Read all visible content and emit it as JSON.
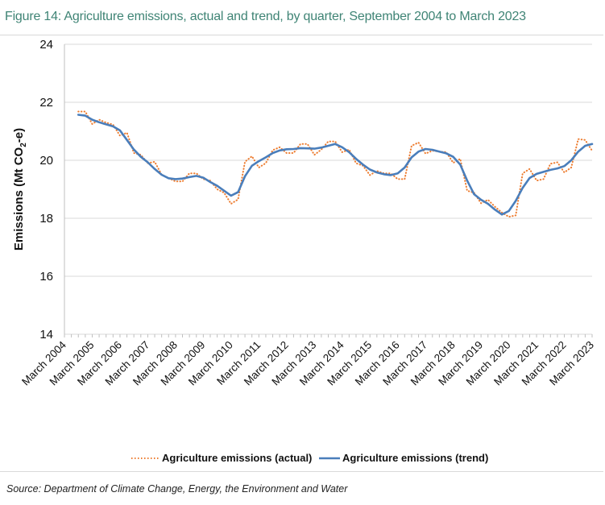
{
  "title": "Figure 14: Agriculture emissions, actual and trend, by quarter, September 2004 to March 2023",
  "source": "Source: Department of Climate Change, Energy, the Environment and Water",
  "chart_data": {
    "type": "line",
    "title": "Figure 14: Agriculture emissions, actual and trend, by quarter, September 2004 to March 2023",
    "ylabel": "Emissions (Mt CO2-e)",
    "ylabel_parts": {
      "main": "Emissions (Mt CO",
      "sub": "2",
      "end": "-e)"
    },
    "xlabel": "",
    "ylim": [
      14,
      24
    ],
    "yticks": [
      "14",
      "16",
      "18",
      "20",
      "22",
      "24"
    ],
    "grid": true,
    "legend_position": "bottom",
    "x_tick_labels": [
      "March 2004",
      "March 2005",
      "March 2006",
      "March 2007",
      "March 2008",
      "March 2009",
      "March 2010",
      "March 2011",
      "March 2012",
      "March 2013",
      "March 2014",
      "March 2015",
      "March 2016",
      "March 2017",
      "March 2018",
      "March 2019",
      "March 2020",
      "March 2021",
      "March 2022",
      "March 2023"
    ],
    "x_start": "September 2004",
    "x_end": "March 2023",
    "x_frequency": "quarterly",
    "series": [
      {
        "name": "Agriculture emissions (actual)",
        "color": "#ed7d31",
        "style": "dotted",
        "values": [
          21.68,
          21.68,
          21.25,
          21.4,
          21.3,
          21.23,
          20.85,
          20.95,
          20.25,
          20.19,
          19.9,
          19.95,
          19.5,
          19.39,
          19.27,
          19.27,
          19.55,
          19.55,
          19.35,
          19.3,
          19.0,
          18.88,
          18.5,
          18.65,
          19.95,
          20.14,
          19.75,
          19.9,
          20.35,
          20.45,
          20.25,
          20.25,
          20.56,
          20.56,
          20.19,
          20.37,
          20.65,
          20.65,
          20.28,
          20.37,
          19.9,
          19.81,
          19.49,
          19.63,
          19.55,
          19.55,
          19.35,
          19.35,
          20.5,
          20.61,
          20.23,
          20.33,
          20.3,
          20.28,
          19.91,
          20.05,
          18.95,
          18.88,
          18.52,
          18.64,
          18.4,
          18.2,
          18.05,
          18.1,
          19.55,
          19.7,
          19.3,
          19.35,
          19.88,
          19.93,
          19.58,
          19.75,
          20.73,
          20.7,
          20.33
        ]
      },
      {
        "name": "Agriculture emissions (trend)",
        "color": "#4a7ebb",
        "style": "solid",
        "values": [
          21.57,
          21.54,
          21.4,
          21.31,
          21.24,
          21.17,
          21.03,
          20.7,
          20.37,
          20.12,
          19.93,
          19.7,
          19.5,
          19.38,
          19.35,
          19.37,
          19.42,
          19.46,
          19.4,
          19.25,
          19.12,
          18.95,
          18.78,
          18.9,
          19.45,
          19.81,
          19.97,
          20.1,
          20.25,
          20.34,
          20.38,
          20.39,
          20.42,
          20.41,
          20.4,
          20.44,
          20.5,
          20.56,
          20.45,
          20.28,
          20.05,
          19.85,
          19.68,
          19.58,
          19.52,
          19.49,
          19.55,
          19.75,
          20.1,
          20.3,
          20.39,
          20.36,
          20.3,
          20.24,
          20.12,
          19.85,
          19.3,
          18.83,
          18.64,
          18.5,
          18.3,
          18.13,
          18.25,
          18.6,
          19.05,
          19.39,
          19.53,
          19.6,
          19.67,
          19.72,
          19.8,
          20.0,
          20.3,
          20.5,
          20.56
        ]
      }
    ]
  }
}
